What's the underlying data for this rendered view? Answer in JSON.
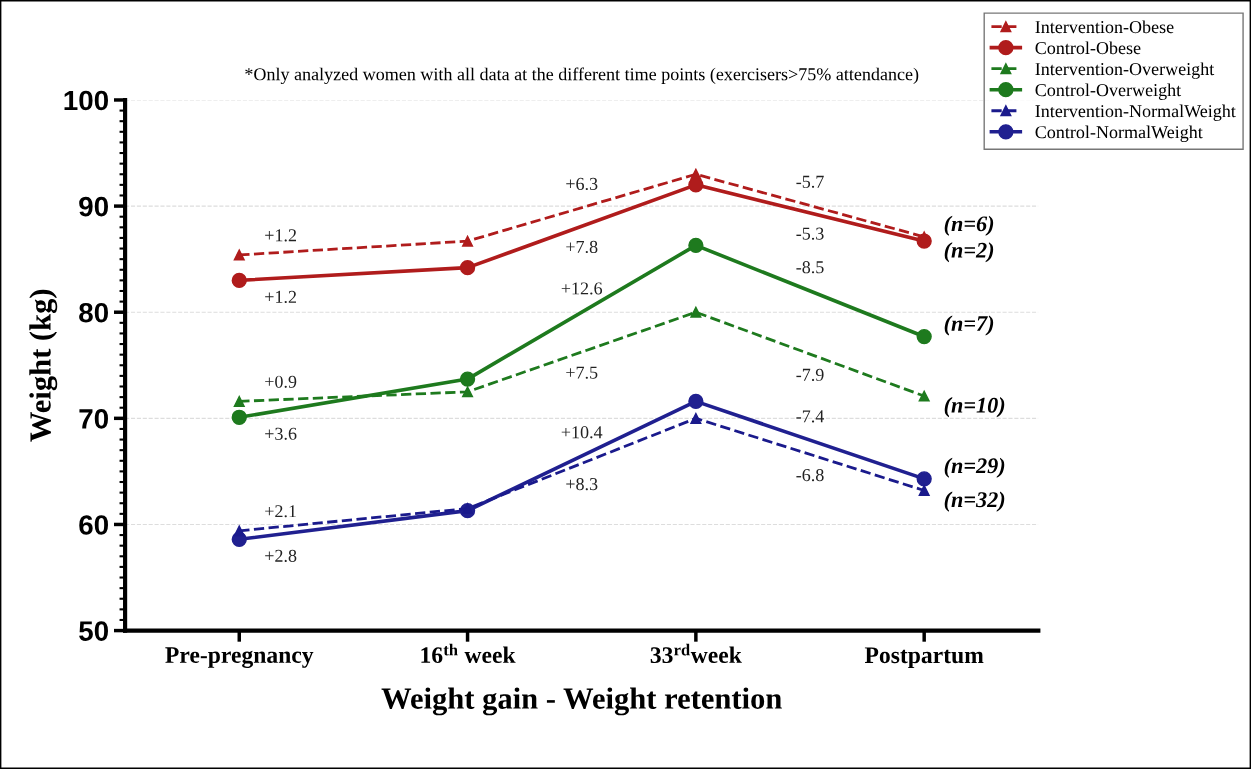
{
  "chart_data": {
    "type": "line",
    "xlabel": "Weight gain - Weight retention",
    "ylabel": "Weight (kg)",
    "categories": [
      "Pre-pregnancy",
      "16$^{th}$ week",
      "33$^{rd}$week",
      "Postpartum"
    ],
    "series": [
      {
        "name": "Intervention-Obese",
        "color": "#b01c1c",
        "values": [
          85.4,
          86.7,
          93.0,
          87.1
        ],
        "marker": "triangle",
        "line_style": "dashed"
      },
      {
        "name": "Control-Obese",
        "color": "#b01c1c",
        "values": [
          83.0,
          84.2,
          92.0,
          86.7
        ],
        "marker": "circle",
        "line_style": "solid"
      },
      {
        "name": "Intervention-Overweight",
        "color": "#1e7a1e",
        "values": [
          71.6,
          72.5,
          80.0,
          72.1
        ],
        "marker": "triangle",
        "line_style": "dashed"
      },
      {
        "name": "Control-Overweight",
        "color": "#1e7a1e",
        "values": [
          70.1,
          73.7,
          86.3,
          77.7
        ],
        "marker": "circle",
        "line_style": "solid"
      },
      {
        "name": "Intervention-NormalWeight",
        "color": "#1a1a8c",
        "values": [
          59.4,
          61.5,
          70.0,
          63.2
        ],
        "marker": "triangle",
        "line_style": "dashed"
      },
      {
        "name": "Control-NormalWeight",
        "color": "#202090",
        "values": [
          58.6,
          61.3,
          71.6,
          64.3
        ],
        "marker": "circle",
        "line_style": "solid"
      }
    ],
    "ylim": [
      50,
      100
    ],
    "yticks": [
      50,
      60,
      70,
      80,
      90,
      100
    ],
    "grid": "y",
    "legend": "top right",
    "annotations": [
      "*Only analyzed women with all data at the different time points (exercisers>75% attendance)",
      "+1.2",
      "+1.2",
      "+0.9",
      "+3.6",
      "+2.1",
      "+2.8",
      "+6.3",
      "+7.8",
      "+7.5",
      "+12.6",
      "+8.3",
      "+10.4",
      "-5.7",
      "-5.3",
      "-7.9",
      "-8.5",
      "-6.8",
      "-7.4",
      "(n=6)",
      "(n=2)",
      "(n=10)",
      "(n=7)",
      "(n=32)",
      "(n=29)"
    ]
  }
}
